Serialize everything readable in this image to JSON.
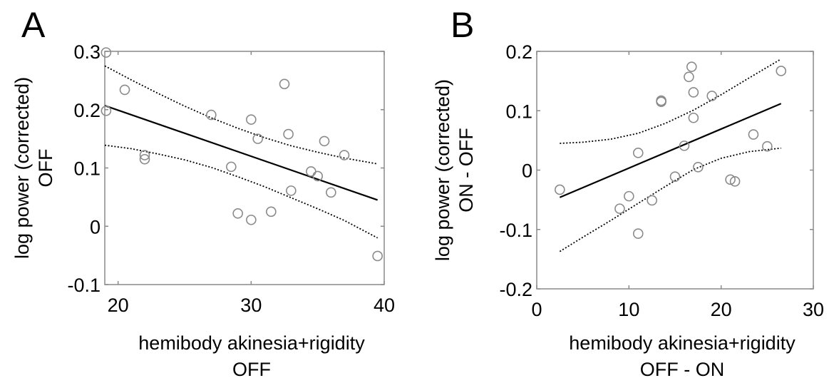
{
  "chart_data": [
    {
      "panel_label": "A",
      "type": "scatter",
      "xlabel": [
        "hemibody akinesia+rigidity",
        "OFF"
      ],
      "ylabel": [
        "log power (corrected)",
        "OFF"
      ],
      "xlim": [
        19,
        40
      ],
      "ylim": [
        -0.1,
        0.3
      ],
      "xticks": [
        20,
        30,
        40
      ],
      "yticks": [
        -0.1,
        0,
        0.1,
        0.2,
        0.3
      ],
      "ytick_labels": [
        "-0.1",
        "0",
        "0.1",
        "0.2",
        "0.3"
      ],
      "points": [
        {
          "x": 19.1,
          "y": 0.298
        },
        {
          "x": 19.1,
          "y": 0.198
        },
        {
          "x": 20.5,
          "y": 0.234
        },
        {
          "x": 22.0,
          "y": 0.122
        },
        {
          "x": 22.0,
          "y": 0.115
        },
        {
          "x": 27.0,
          "y": 0.191
        },
        {
          "x": 28.5,
          "y": 0.102
        },
        {
          "x": 29.0,
          "y": 0.022
        },
        {
          "x": 30.0,
          "y": 0.183
        },
        {
          "x": 30.0,
          "y": 0.011
        },
        {
          "x": 30.5,
          "y": 0.15
        },
        {
          "x": 31.5,
          "y": 0.025
        },
        {
          "x": 32.5,
          "y": 0.244
        },
        {
          "x": 32.8,
          "y": 0.158
        },
        {
          "x": 33.0,
          "y": 0.061
        },
        {
          "x": 34.5,
          "y": 0.094
        },
        {
          "x": 35.0,
          "y": 0.086
        },
        {
          "x": 35.5,
          "y": 0.146
        },
        {
          "x": 36.0,
          "y": 0.058
        },
        {
          "x": 37.0,
          "y": 0.122
        },
        {
          "x": 39.5,
          "y": -0.051
        }
      ],
      "fit_line": {
        "x": [
          19,
          39.5
        ],
        "y": [
          0.207,
          0.045
        ]
      },
      "ci_upper": {
        "x": [
          19,
          21,
          23,
          25,
          27,
          29,
          31,
          33,
          35,
          37,
          39.5
        ],
        "y": [
          0.275,
          0.251,
          0.228,
          0.206,
          0.186,
          0.168,
          0.152,
          0.138,
          0.127,
          0.117,
          0.107
        ]
      },
      "ci_lower": {
        "x": [
          19,
          21,
          23,
          25,
          27,
          29,
          31,
          33,
          35,
          37,
          39.5
        ],
        "y": [
          0.139,
          0.133,
          0.124,
          0.114,
          0.101,
          0.085,
          0.068,
          0.049,
          0.03,
          0.01,
          -0.02
        ]
      }
    },
    {
      "panel_label": "B",
      "type": "scatter",
      "xlabel": [
        "hemibody akinesia+rigidity",
        "OFF - ON"
      ],
      "ylabel": [
        "log power (corrected)",
        "ON - OFF"
      ],
      "xlim": [
        0,
        30
      ],
      "ylim": [
        -0.2,
        0.2
      ],
      "xticks": [
        0,
        10,
        20,
        30
      ],
      "yticks": [
        -0.2,
        -0.1,
        0,
        0.1,
        0.2
      ],
      "ytick_labels": [
        "-0.2",
        "-0.1",
        "0",
        "0.1",
        "0.2"
      ],
      "points": [
        {
          "x": 2.5,
          "y": -0.033
        },
        {
          "x": 9.0,
          "y": -0.065
        },
        {
          "x": 10.0,
          "y": -0.044
        },
        {
          "x": 11.0,
          "y": 0.029
        },
        {
          "x": 11.0,
          "y": -0.107
        },
        {
          "x": 12.5,
          "y": -0.051
        },
        {
          "x": 13.5,
          "y": 0.117
        },
        {
          "x": 13.5,
          "y": 0.115
        },
        {
          "x": 15.0,
          "y": -0.011
        },
        {
          "x": 16.0,
          "y": 0.041
        },
        {
          "x": 16.5,
          "y": 0.157
        },
        {
          "x": 16.8,
          "y": 0.174
        },
        {
          "x": 17.0,
          "y": 0.131
        },
        {
          "x": 17.0,
          "y": 0.088
        },
        {
          "x": 17.5,
          "y": 0.005
        },
        {
          "x": 19.0,
          "y": 0.125
        },
        {
          "x": 21.0,
          "y": -0.016
        },
        {
          "x": 21.5,
          "y": -0.019
        },
        {
          "x": 23.5,
          "y": 0.06
        },
        {
          "x": 25.0,
          "y": 0.04
        },
        {
          "x": 26.5,
          "y": 0.167
        }
      ],
      "fit_line": {
        "x": [
          2.5,
          26.5
        ],
        "y": [
          -0.046,
          0.112
        ]
      },
      "ci_upper": {
        "x": [
          2.5,
          5,
          8,
          11,
          14,
          17,
          20,
          23,
          26.5
        ],
        "y": [
          0.045,
          0.047,
          0.052,
          0.062,
          0.079,
          0.101,
          0.127,
          0.155,
          0.187
        ]
      },
      "ci_lower": {
        "x": [
          2.5,
          5,
          8,
          11,
          14,
          17,
          20,
          23,
          26.5
        ],
        "y": [
          -0.137,
          -0.113,
          -0.085,
          -0.056,
          -0.027,
          0.001,
          0.02,
          0.031,
          0.037
        ]
      }
    }
  ]
}
